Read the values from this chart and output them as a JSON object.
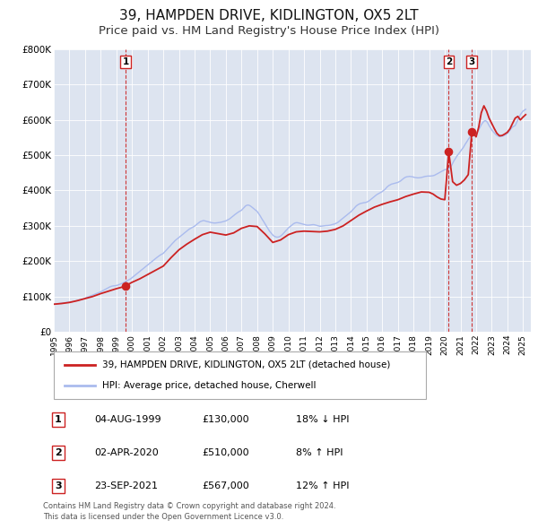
{
  "title": "39, HAMPDEN DRIVE, KIDLINGTON, OX5 2LT",
  "subtitle": "Price paid vs. HM Land Registry's House Price Index (HPI)",
  "title_fontsize": 11,
  "subtitle_fontsize": 9.5,
  "ylim": [
    0,
    800000
  ],
  "yticks": [
    0,
    100000,
    200000,
    300000,
    400000,
    500000,
    600000,
    700000,
    800000
  ],
  "ytick_labels": [
    "£0",
    "£100K",
    "£200K",
    "£300K",
    "£400K",
    "£500K",
    "£600K",
    "£700K",
    "£800K"
  ],
  "xlim_start": 1995.0,
  "xlim_end": 2025.5,
  "xtick_years": [
    1995,
    1996,
    1997,
    1998,
    1999,
    2000,
    2001,
    2002,
    2003,
    2004,
    2005,
    2006,
    2007,
    2008,
    2009,
    2010,
    2011,
    2012,
    2013,
    2014,
    2015,
    2016,
    2017,
    2018,
    2019,
    2020,
    2021,
    2022,
    2023,
    2024,
    2025
  ],
  "plot_bg_color": "#dde4f0",
  "grid_color": "#ffffff",
  "hpi_color": "#aabbee",
  "price_color": "#cc2222",
  "marker_color": "#cc2222",
  "vline_color": "#cc2222",
  "legend_label_price": "39, HAMPDEN DRIVE, KIDLINGTON, OX5 2LT (detached house)",
  "legend_label_hpi": "HPI: Average price, detached house, Cherwell",
  "sale_markers": [
    {
      "id": 1,
      "date_num": 1999.59,
      "price": 130000,
      "label": "1",
      "date_str": "04-AUG-1999",
      "price_str": "£130,000",
      "hpi_str": "18% ↓ HPI"
    },
    {
      "id": 2,
      "date_num": 2020.25,
      "price": 510000,
      "label": "2",
      "date_str": "02-APR-2020",
      "price_str": "£510,000",
      "hpi_str": "8% ↑ HPI"
    },
    {
      "id": 3,
      "date_num": 2021.73,
      "price": 567000,
      "label": "3",
      "date_str": "23-SEP-2021",
      "price_str": "£567,000",
      "hpi_str": "12% ↑ HPI"
    }
  ],
  "footer_line1": "Contains HM Land Registry data © Crown copyright and database right 2024.",
  "footer_line2": "This data is licensed under the Open Government Licence v3.0.",
  "hpi_data": [
    [
      1995.0,
      78000
    ],
    [
      1995.08,
      78500
    ],
    [
      1995.17,
      79000
    ],
    [
      1995.25,
      79500
    ],
    [
      1995.33,
      80000
    ],
    [
      1995.42,
      80500
    ],
    [
      1995.5,
      81000
    ],
    [
      1995.58,
      81500
    ],
    [
      1995.67,
      82000
    ],
    [
      1995.75,
      82500
    ],
    [
      1995.83,
      83000
    ],
    [
      1995.92,
      83500
    ],
    [
      1996.0,
      84000
    ],
    [
      1996.08,
      84500
    ],
    [
      1996.17,
      85000
    ],
    [
      1996.25,
      85500
    ],
    [
      1996.33,
      86500
    ],
    [
      1996.42,
      87500
    ],
    [
      1996.5,
      88500
    ],
    [
      1996.58,
      89500
    ],
    [
      1996.67,
      90500
    ],
    [
      1996.75,
      91500
    ],
    [
      1996.83,
      92500
    ],
    [
      1996.92,
      93500
    ],
    [
      1997.0,
      95000
    ],
    [
      1997.08,
      96500
    ],
    [
      1997.17,
      98000
    ],
    [
      1997.25,
      99500
    ],
    [
      1997.33,
      101000
    ],
    [
      1997.42,
      102500
    ],
    [
      1997.5,
      104000
    ],
    [
      1997.58,
      105500
    ],
    [
      1997.67,
      107000
    ],
    [
      1997.75,
      108500
    ],
    [
      1997.83,
      110000
    ],
    [
      1997.92,
      111500
    ],
    [
      1998.0,
      113000
    ],
    [
      1998.08,
      115000
    ],
    [
      1998.17,
      117000
    ],
    [
      1998.25,
      119000
    ],
    [
      1998.33,
      121000
    ],
    [
      1998.42,
      123000
    ],
    [
      1998.5,
      125000
    ],
    [
      1998.58,
      127000
    ],
    [
      1998.67,
      128500
    ],
    [
      1998.75,
      129500
    ],
    [
      1998.83,
      130000
    ],
    [
      1998.92,
      130500
    ],
    [
      1999.0,
      131000
    ],
    [
      1999.08,
      132000
    ],
    [
      1999.17,
      133500
    ],
    [
      1999.25,
      135000
    ],
    [
      1999.33,
      136500
    ],
    [
      1999.42,
      138000
    ],
    [
      1999.5,
      140000
    ],
    [
      1999.58,
      142000
    ],
    [
      1999.67,
      144000
    ],
    [
      1999.75,
      146000
    ],
    [
      1999.83,
      148000
    ],
    [
      1999.92,
      150000
    ],
    [
      2000.0,
      153000
    ],
    [
      2000.08,
      156000
    ],
    [
      2000.17,
      159000
    ],
    [
      2000.25,
      162000
    ],
    [
      2000.33,
      165000
    ],
    [
      2000.42,
      168000
    ],
    [
      2000.5,
      171000
    ],
    [
      2000.58,
      174000
    ],
    [
      2000.67,
      177000
    ],
    [
      2000.75,
      180000
    ],
    [
      2000.83,
      183000
    ],
    [
      2000.92,
      186000
    ],
    [
      2001.0,
      189000
    ],
    [
      2001.08,
      192000
    ],
    [
      2001.17,
      195000
    ],
    [
      2001.25,
      198000
    ],
    [
      2001.33,
      201000
    ],
    [
      2001.42,
      204000
    ],
    [
      2001.5,
      207000
    ],
    [
      2001.58,
      210000
    ],
    [
      2001.67,
      213000
    ],
    [
      2001.75,
      216000
    ],
    [
      2001.83,
      218000
    ],
    [
      2001.92,
      220000
    ],
    [
      2002.0,
      222000
    ],
    [
      2002.08,
      226000
    ],
    [
      2002.17,
      230000
    ],
    [
      2002.25,
      234000
    ],
    [
      2002.33,
      238000
    ],
    [
      2002.42,
      242000
    ],
    [
      2002.5,
      246000
    ],
    [
      2002.58,
      250000
    ],
    [
      2002.67,
      254000
    ],
    [
      2002.75,
      258000
    ],
    [
      2002.83,
      261000
    ],
    [
      2002.92,
      264000
    ],
    [
      2003.0,
      267000
    ],
    [
      2003.08,
      270000
    ],
    [
      2003.17,
      273000
    ],
    [
      2003.25,
      276000
    ],
    [
      2003.33,
      279000
    ],
    [
      2003.42,
      282000
    ],
    [
      2003.5,
      285000
    ],
    [
      2003.58,
      288000
    ],
    [
      2003.67,
      291000
    ],
    [
      2003.75,
      293000
    ],
    [
      2003.83,
      295000
    ],
    [
      2003.92,
      297000
    ],
    [
      2004.0,
      299000
    ],
    [
      2004.08,
      302000
    ],
    [
      2004.17,
      305000
    ],
    [
      2004.25,
      308000
    ],
    [
      2004.33,
      311000
    ],
    [
      2004.42,
      313000
    ],
    [
      2004.5,
      314000
    ],
    [
      2004.58,
      315000
    ],
    [
      2004.67,
      314000
    ],
    [
      2004.75,
      313000
    ],
    [
      2004.83,
      312000
    ],
    [
      2004.92,
      311000
    ],
    [
      2005.0,
      310000
    ],
    [
      2005.08,
      309000
    ],
    [
      2005.17,
      308500
    ],
    [
      2005.25,
      308000
    ],
    [
      2005.33,
      308000
    ],
    [
      2005.42,
      308500
    ],
    [
      2005.5,
      309000
    ],
    [
      2005.58,
      309500
    ],
    [
      2005.67,
      310000
    ],
    [
      2005.75,
      311000
    ],
    [
      2005.83,
      312000
    ],
    [
      2005.92,
      313000
    ],
    [
      2006.0,
      314000
    ],
    [
      2006.08,
      316000
    ],
    [
      2006.17,
      318000
    ],
    [
      2006.25,
      320000
    ],
    [
      2006.33,
      323000
    ],
    [
      2006.42,
      326000
    ],
    [
      2006.5,
      329000
    ],
    [
      2006.58,
      332000
    ],
    [
      2006.67,
      335000
    ],
    [
      2006.75,
      338000
    ],
    [
      2006.83,
      340000
    ],
    [
      2006.92,
      342000
    ],
    [
      2007.0,
      344000
    ],
    [
      2007.08,
      348000
    ],
    [
      2007.17,
      352000
    ],
    [
      2007.25,
      356000
    ],
    [
      2007.33,
      358000
    ],
    [
      2007.42,
      359000
    ],
    [
      2007.5,
      358000
    ],
    [
      2007.58,
      356000
    ],
    [
      2007.67,
      353000
    ],
    [
      2007.75,
      350000
    ],
    [
      2007.83,
      347000
    ],
    [
      2007.92,
      344000
    ],
    [
      2008.0,
      341000
    ],
    [
      2008.08,
      336000
    ],
    [
      2008.17,
      330000
    ],
    [
      2008.25,
      324000
    ],
    [
      2008.33,
      318000
    ],
    [
      2008.42,
      312000
    ],
    [
      2008.5,
      306000
    ],
    [
      2008.58,
      300000
    ],
    [
      2008.67,
      294000
    ],
    [
      2008.75,
      288000
    ],
    [
      2008.83,
      283000
    ],
    [
      2008.92,
      278000
    ],
    [
      2009.0,
      274000
    ],
    [
      2009.08,
      271000
    ],
    [
      2009.17,
      269000
    ],
    [
      2009.25,
      268000
    ],
    [
      2009.33,
      268000
    ],
    [
      2009.42,
      269000
    ],
    [
      2009.5,
      271000
    ],
    [
      2009.58,
      274000
    ],
    [
      2009.67,
      278000
    ],
    [
      2009.75,
      282000
    ],
    [
      2009.83,
      286000
    ],
    [
      2009.92,
      290000
    ],
    [
      2010.0,
      294000
    ],
    [
      2010.08,
      297000
    ],
    [
      2010.17,
      300000
    ],
    [
      2010.25,
      303000
    ],
    [
      2010.33,
      306000
    ],
    [
      2010.42,
      308000
    ],
    [
      2010.5,
      309000
    ],
    [
      2010.58,
      309000
    ],
    [
      2010.67,
      308000
    ],
    [
      2010.75,
      307000
    ],
    [
      2010.83,
      306000
    ],
    [
      2010.92,
      305000
    ],
    [
      2011.0,
      304000
    ],
    [
      2011.08,
      303000
    ],
    [
      2011.17,
      302000
    ],
    [
      2011.25,
      302000
    ],
    [
      2011.33,
      302000
    ],
    [
      2011.42,
      302500
    ],
    [
      2011.5,
      303000
    ],
    [
      2011.58,
      303500
    ],
    [
      2011.67,
      303000
    ],
    [
      2011.75,
      302000
    ],
    [
      2011.83,
      301000
    ],
    [
      2011.92,
      300000
    ],
    [
      2012.0,
      299000
    ],
    [
      2012.08,
      299000
    ],
    [
      2012.17,
      299500
    ],
    [
      2012.25,
      300000
    ],
    [
      2012.33,
      300500
    ],
    [
      2012.42,
      301000
    ],
    [
      2012.5,
      301000
    ],
    [
      2012.58,
      301500
    ],
    [
      2012.67,
      302000
    ],
    [
      2012.75,
      303000
    ],
    [
      2012.83,
      304000
    ],
    [
      2012.92,
      305000
    ],
    [
      2013.0,
      306000
    ],
    [
      2013.08,
      308000
    ],
    [
      2013.17,
      310000
    ],
    [
      2013.25,
      313000
    ],
    [
      2013.33,
      316000
    ],
    [
      2013.42,
      319000
    ],
    [
      2013.5,
      322000
    ],
    [
      2013.58,
      325000
    ],
    [
      2013.67,
      328000
    ],
    [
      2013.75,
      331000
    ],
    [
      2013.83,
      334000
    ],
    [
      2013.92,
      337000
    ],
    [
      2014.0,
      340000
    ],
    [
      2014.08,
      344000
    ],
    [
      2014.17,
      348000
    ],
    [
      2014.25,
      352000
    ],
    [
      2014.33,
      356000
    ],
    [
      2014.42,
      359000
    ],
    [
      2014.5,
      361000
    ],
    [
      2014.58,
      363000
    ],
    [
      2014.67,
      364000
    ],
    [
      2014.75,
      365000
    ],
    [
      2014.83,
      365500
    ],
    [
      2014.92,
      366000
    ],
    [
      2015.0,
      367000
    ],
    [
      2015.08,
      369000
    ],
    [
      2015.17,
      371000
    ],
    [
      2015.25,
      374000
    ],
    [
      2015.33,
      377000
    ],
    [
      2015.42,
      380000
    ],
    [
      2015.5,
      383000
    ],
    [
      2015.58,
      386000
    ],
    [
      2015.67,
      389000
    ],
    [
      2015.75,
      391000
    ],
    [
      2015.83,
      393000
    ],
    [
      2015.92,
      395000
    ],
    [
      2016.0,
      397000
    ],
    [
      2016.08,
      400000
    ],
    [
      2016.17,
      403000
    ],
    [
      2016.25,
      407000
    ],
    [
      2016.33,
      411000
    ],
    [
      2016.42,
      414000
    ],
    [
      2016.5,
      416000
    ],
    [
      2016.58,
      418000
    ],
    [
      2016.67,
      419000
    ],
    [
      2016.75,
      420000
    ],
    [
      2016.83,
      421000
    ],
    [
      2016.92,
      422000
    ],
    [
      2017.0,
      423000
    ],
    [
      2017.08,
      425000
    ],
    [
      2017.17,
      427000
    ],
    [
      2017.25,
      430000
    ],
    [
      2017.33,
      433000
    ],
    [
      2017.42,
      436000
    ],
    [
      2017.5,
      438000
    ],
    [
      2017.58,
      439000
    ],
    [
      2017.67,
      439500
    ],
    [
      2017.75,
      440000
    ],
    [
      2017.83,
      439500
    ],
    [
      2017.92,
      439000
    ],
    [
      2018.0,
      438000
    ],
    [
      2018.08,
      437000
    ],
    [
      2018.17,
      436500
    ],
    [
      2018.25,
      436000
    ],
    [
      2018.33,
      436000
    ],
    [
      2018.42,
      436500
    ],
    [
      2018.5,
      437000
    ],
    [
      2018.58,
      438000
    ],
    [
      2018.67,
      439000
    ],
    [
      2018.75,
      440000
    ],
    [
      2018.83,
      440500
    ],
    [
      2018.92,
      441000
    ],
    [
      2019.0,
      441000
    ],
    [
      2019.08,
      441000
    ],
    [
      2019.17,
      441500
    ],
    [
      2019.25,
      442000
    ],
    [
      2019.33,
      443000
    ],
    [
      2019.42,
      445000
    ],
    [
      2019.5,
      447000
    ],
    [
      2019.58,
      449000
    ],
    [
      2019.67,
      451000
    ],
    [
      2019.75,
      453000
    ],
    [
      2019.83,
      455000
    ],
    [
      2019.92,
      457000
    ],
    [
      2020.0,
      459000
    ],
    [
      2020.08,
      460000
    ],
    [
      2020.17,
      461000
    ],
    [
      2020.25,
      462000
    ],
    [
      2020.33,
      465000
    ],
    [
      2020.42,
      470000
    ],
    [
      2020.5,
      477000
    ],
    [
      2020.58,
      484000
    ],
    [
      2020.67,
      490000
    ],
    [
      2020.75,
      496000
    ],
    [
      2020.83,
      501000
    ],
    [
      2020.92,
      506000
    ],
    [
      2021.0,
      511000
    ],
    [
      2021.08,
      516000
    ],
    [
      2021.17,
      521000
    ],
    [
      2021.25,
      527000
    ],
    [
      2021.33,
      533000
    ],
    [
      2021.42,
      539000
    ],
    [
      2021.5,
      545000
    ],
    [
      2021.58,
      550000
    ],
    [
      2021.67,
      554000
    ],
    [
      2021.75,
      557000
    ],
    [
      2021.83,
      559000
    ],
    [
      2021.92,
      560000
    ],
    [
      2022.0,
      562000
    ],
    [
      2022.08,
      566000
    ],
    [
      2022.17,
      572000
    ],
    [
      2022.25,
      579000
    ],
    [
      2022.33,
      586000
    ],
    [
      2022.42,
      592000
    ],
    [
      2022.5,
      596000
    ],
    [
      2022.58,
      598000
    ],
    [
      2022.67,
      596000
    ],
    [
      2022.75,
      591000
    ],
    [
      2022.83,
      584000
    ],
    [
      2022.92,
      578000
    ],
    [
      2023.0,
      572000
    ],
    [
      2023.08,
      567000
    ],
    [
      2023.17,
      563000
    ],
    [
      2023.25,
      559000
    ],
    [
      2023.33,
      556000
    ],
    [
      2023.42,
      554000
    ],
    [
      2023.5,
      553000
    ],
    [
      2023.58,
      553000
    ],
    [
      2023.67,
      554000
    ],
    [
      2023.75,
      555000
    ],
    [
      2023.83,
      557000
    ],
    [
      2023.92,
      559000
    ],
    [
      2024.0,
      562000
    ],
    [
      2024.08,
      566000
    ],
    [
      2024.17,
      571000
    ],
    [
      2024.25,
      576000
    ],
    [
      2024.33,
      580000
    ],
    [
      2024.5,
      584000
    ],
    [
      2024.67,
      600000
    ],
    [
      2024.83,
      615000
    ],
    [
      2025.0,
      625000
    ],
    [
      2025.17,
      630000
    ]
  ],
  "price_data": [
    [
      1995.0,
      78000
    ],
    [
      1995.5,
      80000
    ],
    [
      1996.0,
      83000
    ],
    [
      1996.5,
      88000
    ],
    [
      1997.0,
      94000
    ],
    [
      1997.5,
      100000
    ],
    [
      1998.0,
      108000
    ],
    [
      1998.5,
      115000
    ],
    [
      1999.0,
      122000
    ],
    [
      1999.42,
      127000
    ],
    [
      1999.59,
      130000
    ],
    [
      1999.75,
      134000
    ],
    [
      2000.0,
      140000
    ],
    [
      2000.5,
      150000
    ],
    [
      2001.0,
      162000
    ],
    [
      2001.5,
      174000
    ],
    [
      2002.0,
      186000
    ],
    [
      2002.5,
      210000
    ],
    [
      2003.0,
      232000
    ],
    [
      2003.5,
      248000
    ],
    [
      2004.0,
      262000
    ],
    [
      2004.5,
      275000
    ],
    [
      2005.0,
      282000
    ],
    [
      2005.5,
      278000
    ],
    [
      2006.0,
      274000
    ],
    [
      2006.5,
      280000
    ],
    [
      2007.0,
      293000
    ],
    [
      2007.5,
      300000
    ],
    [
      2008.0,
      298000
    ],
    [
      2008.5,
      277000
    ],
    [
      2009.0,
      253000
    ],
    [
      2009.5,
      260000
    ],
    [
      2010.0,
      275000
    ],
    [
      2010.5,
      283000
    ],
    [
      2011.0,
      285000
    ],
    [
      2011.5,
      284000
    ],
    [
      2012.0,
      283000
    ],
    [
      2012.5,
      285000
    ],
    [
      2013.0,
      290000
    ],
    [
      2013.5,
      300000
    ],
    [
      2014.0,
      315000
    ],
    [
      2014.5,
      330000
    ],
    [
      2015.0,
      342000
    ],
    [
      2015.5,
      353000
    ],
    [
      2016.0,
      361000
    ],
    [
      2016.5,
      368000
    ],
    [
      2017.0,
      374000
    ],
    [
      2017.5,
      383000
    ],
    [
      2018.0,
      390000
    ],
    [
      2018.5,
      396000
    ],
    [
      2019.0,
      395000
    ],
    [
      2019.25,
      390000
    ],
    [
      2019.5,
      382000
    ],
    [
      2019.75,
      376000
    ],
    [
      2020.0,
      374000
    ],
    [
      2020.25,
      510000
    ],
    [
      2020.5,
      425000
    ],
    [
      2020.75,
      415000
    ],
    [
      2021.0,
      420000
    ],
    [
      2021.25,
      430000
    ],
    [
      2021.5,
      445000
    ],
    [
      2021.73,
      567000
    ],
    [
      2021.9,
      558000
    ],
    [
      2022.0,
      552000
    ],
    [
      2022.17,
      580000
    ],
    [
      2022.33,
      620000
    ],
    [
      2022.5,
      640000
    ],
    [
      2022.67,
      625000
    ],
    [
      2022.83,
      605000
    ],
    [
      2023.0,
      590000
    ],
    [
      2023.17,
      575000
    ],
    [
      2023.33,
      562000
    ],
    [
      2023.5,
      555000
    ],
    [
      2023.67,
      556000
    ],
    [
      2023.83,
      560000
    ],
    [
      2024.0,
      565000
    ],
    [
      2024.17,
      575000
    ],
    [
      2024.33,
      590000
    ],
    [
      2024.5,
      605000
    ],
    [
      2024.67,
      610000
    ],
    [
      2024.83,
      600000
    ],
    [
      2025.0,
      608000
    ],
    [
      2025.17,
      615000
    ]
  ]
}
